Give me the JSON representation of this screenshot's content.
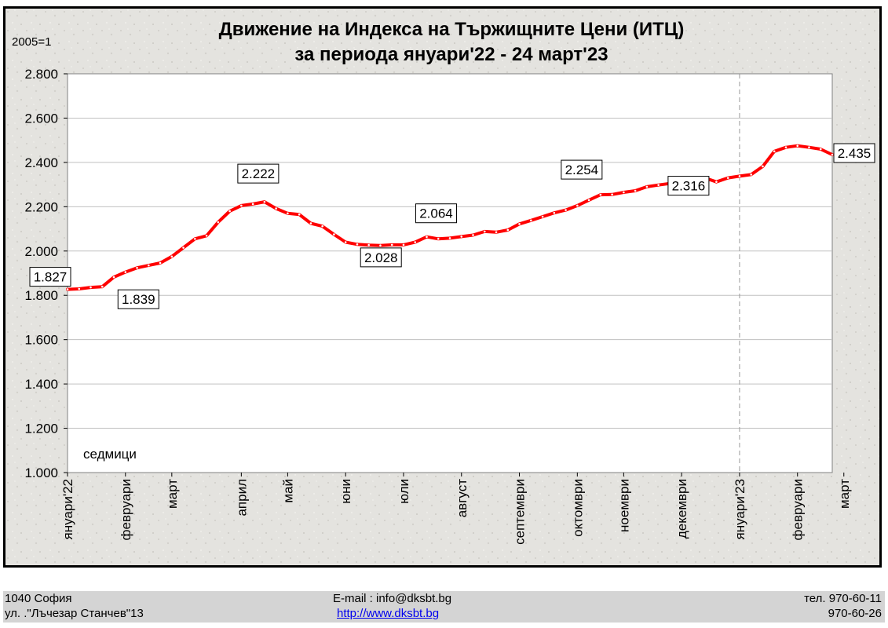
{
  "chart_data": {
    "type": "line",
    "title_line1": "Движение на Индекса на Тържищните Цени (ИТЦ)",
    "title_line2": "за периода януари'22 - 24 март'23",
    "base_label": "2005=1",
    "xlabel": "седмици",
    "ylim": [
      1.0,
      2.8
    ],
    "yticks": [
      "1.000",
      "1.200",
      "1.400",
      "1.600",
      "1.800",
      "2.000",
      "2.200",
      "2.400",
      "2.600",
      "2.800"
    ],
    "grid": true,
    "series_color": "#ff0000",
    "x_tick_labels": [
      "януари'22",
      "февруари",
      "март",
      "април",
      "май",
      "юни",
      "юли",
      "август",
      "септември",
      "октомври",
      "ноември",
      "декември",
      "януари'23",
      "февруари",
      "март"
    ],
    "x_tick_weeks": [
      0,
      5,
      9,
      15,
      19,
      24,
      29,
      34,
      39,
      44,
      48,
      53,
      58,
      63,
      67
    ],
    "year_divider_week": 58,
    "values": [
      1.827,
      1.829,
      1.836,
      1.839,
      1.882,
      1.905,
      1.924,
      1.935,
      1.946,
      1.975,
      2.015,
      2.055,
      2.069,
      2.13,
      2.18,
      2.205,
      2.212,
      2.222,
      2.192,
      2.17,
      2.165,
      2.125,
      2.112,
      2.075,
      2.04,
      2.03,
      2.027,
      2.025,
      2.028,
      2.028,
      2.04,
      2.064,
      2.055,
      2.058,
      2.065,
      2.072,
      2.088,
      2.085,
      2.095,
      2.122,
      2.138,
      2.155,
      2.172,
      2.185,
      2.205,
      2.23,
      2.254,
      2.255,
      2.265,
      2.272,
      2.29,
      2.298,
      2.305,
      2.31,
      2.316,
      2.33,
      2.312,
      2.33,
      2.338,
      2.345,
      2.382,
      2.45,
      2.468,
      2.475,
      2.468,
      2.46,
      2.435
    ],
    "annotations": [
      {
        "label": "1.827",
        "week": 0
      },
      {
        "label": "1.839",
        "week": 3
      },
      {
        "label": "2.222",
        "week": 17
      },
      {
        "label": "2.028",
        "week": 28
      },
      {
        "label": "2.064",
        "week": 31
      },
      {
        "label": "2.254",
        "week": 46
      },
      {
        "label": "2.316",
        "week": 54
      },
      {
        "label": "2.435",
        "week": 66
      }
    ]
  },
  "footer": {
    "address_line1": "1040 София",
    "address_line2": "ул. .\"Лъчезар Станчев\"13",
    "email_text": "E-mail : info@dksbt.bg",
    "url_text": "http://www.dksbt.bg ",
    "phone_line1": "тел. 970-60-11",
    "phone_line2": "970-60-26"
  }
}
